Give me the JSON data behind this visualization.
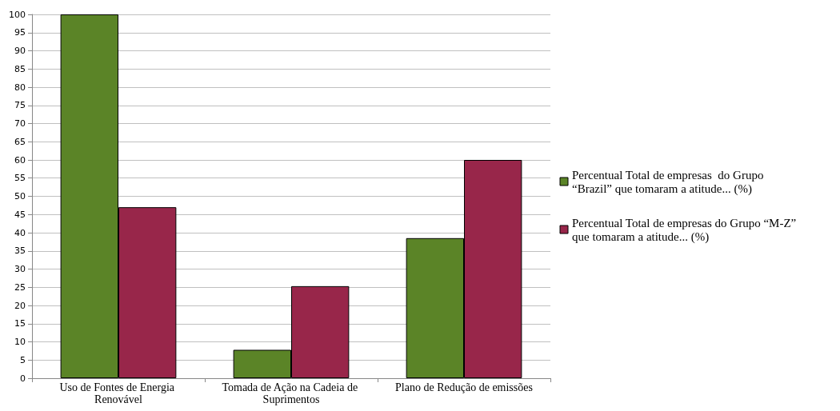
{
  "chart_data": {
    "type": "bar",
    "categories": [
      "Uso de Fontes de Energia Renovável",
      "Tomada de Ação na Cadeia de Suprimentos",
      "Plano de Redução de emissões"
    ],
    "series": [
      {
        "name": "Percentual Total de empresas  do Grupo “Brazil” que tomaram a atitude... (%)",
        "color": "#5b8427",
        "values": [
          100,
          7.8,
          38.5
        ]
      },
      {
        "name": "Percentual Total de empresas do Grupo “M-Z” que tomaram a atitude... (%)",
        "color": "#98264a",
        "values": [
          47,
          25.3,
          60
        ]
      }
    ],
    "ylim": [
      0,
      100
    ],
    "yticks": [
      0,
      5,
      10,
      15,
      20,
      25,
      30,
      35,
      40,
      45,
      50,
      55,
      60,
      65,
      70,
      75,
      80,
      85,
      90,
      95,
      100
    ],
    "grid": "y",
    "legend": "right"
  }
}
